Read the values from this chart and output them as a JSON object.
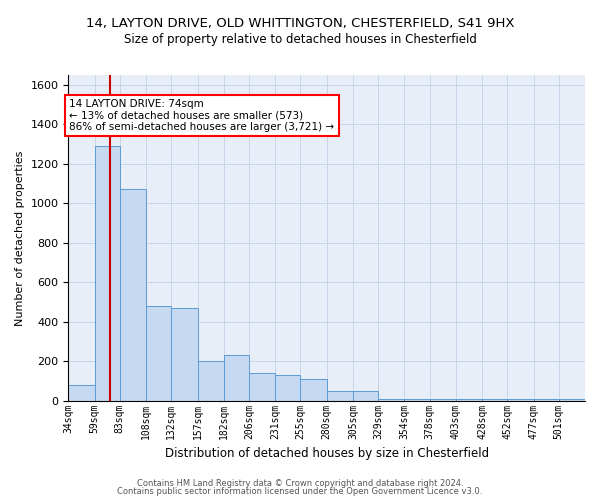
{
  "title_line1": "14, LAYTON DRIVE, OLD WHITTINGTON, CHESTERFIELD, S41 9HX",
  "title_line2": "Size of property relative to detached houses in Chesterfield",
  "xlabel": "Distribution of detached houses by size in Chesterfield",
  "ylabel": "Number of detached properties",
  "footer_line1": "Contains HM Land Registry data © Crown copyright and database right 2024.",
  "footer_line2": "Contains public sector information licensed under the Open Government Licence v3.0.",
  "annotation_title": "14 LAYTON DRIVE: 74sqm",
  "annotation_line1": "← 13% of detached houses are smaller (573)",
  "annotation_line2": "86% of semi-detached houses are larger (3,721) →",
  "property_size": 74,
  "bar_edges": [
    34,
    59,
    83,
    108,
    132,
    157,
    182,
    206,
    231,
    255,
    280,
    305,
    329,
    354,
    378,
    403,
    428,
    452,
    477,
    501,
    526
  ],
  "bar_heights": [
    80,
    1290,
    1070,
    480,
    470,
    200,
    230,
    140,
    130,
    110,
    50,
    50,
    10,
    10,
    10,
    10,
    10,
    10,
    10,
    10,
    35
  ],
  "bar_color": "#c6d9f0",
  "bar_edge_color": "#5b9bd5",
  "vline_color": "#cc0000",
  "vline_x": 74,
  "ylim": [
    0,
    1650
  ],
  "yticks": [
    0,
    200,
    400,
    600,
    800,
    1000,
    1200,
    1400,
    1600
  ],
  "grid_color": "#c8d4e8",
  "background_color": "#e8eef8",
  "title1_fontsize": 9.5,
  "title2_fontsize": 8.5
}
